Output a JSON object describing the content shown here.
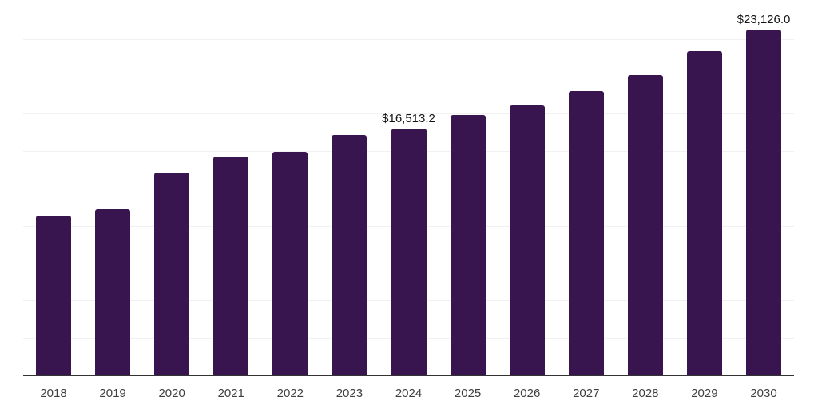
{
  "chart_data": {
    "type": "bar",
    "title": "",
    "xlabel": "",
    "ylabel": "",
    "categories": [
      "2018",
      "2019",
      "2020",
      "2021",
      "2022",
      "2023",
      "2024",
      "2025",
      "2026",
      "2027",
      "2028",
      "2029",
      "2030"
    ],
    "values": [
      10680,
      11130,
      13570,
      14660,
      14960,
      16080,
      16513.2,
      17410,
      18060,
      19020,
      20090,
      21690,
      23126.0
    ],
    "value_note": "only 2024 and 2030 carry visible data labels; other values estimated from gridlines (2500 per division)",
    "ylim": [
      0,
      25000
    ],
    "ytick_step": 2500,
    "y_tick_labels_visible": false,
    "grid": "horizontal",
    "legend": "none",
    "data_labels": [
      {
        "category": "2024",
        "text": "$16,513.2"
      },
      {
        "category": "2030",
        "text": "$23,126.0"
      }
    ]
  },
  "colors": {
    "background": "#ffffff",
    "bar": "#38154F",
    "gridline": "#f1f1f1",
    "axis_line": "#333333",
    "tick_label": "#3f3f3f",
    "data_label": "#141414"
  }
}
